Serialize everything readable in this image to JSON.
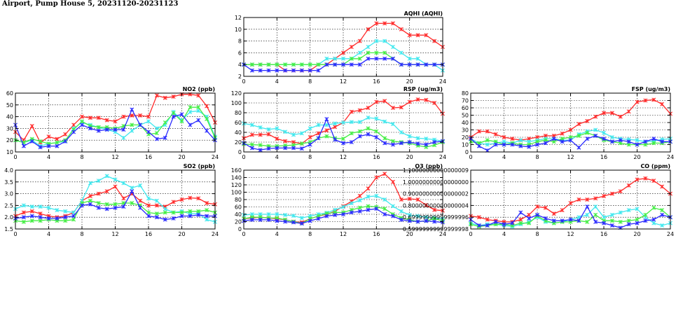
{
  "title": "Airport, Pump House 5, 20231120-20231123",
  "colors": {
    "red": "#ff2a2a",
    "cyan": "#40e8ee",
    "green": "#44ee44",
    "blue": "#2a2aff",
    "dark": "#8c2020"
  },
  "chart_data": [
    {
      "type": "line",
      "id": "aqhi",
      "title": "AQHI (AQHI)",
      "x": [
        0,
        1,
        2,
        3,
        4,
        5,
        6,
        7,
        8,
        9,
        10,
        11,
        12,
        13,
        14,
        15,
        16,
        17,
        18,
        19,
        20,
        21,
        22,
        23,
        24
      ],
      "xticks": [
        0,
        4,
        8,
        12,
        16,
        20,
        24
      ],
      "ylim": [
        2,
        12
      ],
      "yticks": [
        2,
        4,
        6,
        8,
        10,
        12
      ],
      "grid": true,
      "series": [
        {
          "color": "red",
          "values": [
            4,
            4,
            4,
            4,
            4,
            3,
            3,
            3,
            3,
            4,
            4,
            5,
            6,
            7,
            8,
            10,
            11,
            11,
            11,
            10,
            9,
            9,
            9,
            8,
            7
          ]
        },
        {
          "color": "cyan",
          "values": [
            4,
            4,
            4,
            4,
            4,
            4,
            4,
            4,
            4,
            4,
            5,
            5,
            5,
            5,
            6,
            7,
            8,
            8,
            7,
            6,
            5,
            5,
            4,
            4,
            3
          ]
        },
        {
          "color": "green",
          "values": [
            4,
            4,
            4,
            4,
            4,
            4,
            4,
            4,
            4,
            4,
            4,
            4,
            4,
            5,
            5,
            6,
            6,
            6,
            5,
            4,
            4,
            4,
            4,
            4,
            4
          ]
        },
        {
          "color": "blue",
          "values": [
            4,
            3,
            3,
            3,
            3,
            3,
            3,
            3,
            3,
            3,
            4,
            4,
            4,
            4,
            4,
            5,
            5,
            5,
            5,
            4,
            4,
            4,
            4,
            4,
            4
          ]
        }
      ]
    },
    {
      "type": "line",
      "id": "no2",
      "title": "NO2 (ppb)",
      "x": [
        0,
        1,
        2,
        3,
        4,
        5,
        6,
        7,
        8,
        9,
        10,
        11,
        12,
        13,
        14,
        15,
        16,
        17,
        18,
        19,
        20,
        21,
        22,
        23,
        24
      ],
      "xticks": [
        0,
        4,
        8,
        12,
        16,
        20,
        24
      ],
      "ylim": [
        10,
        60
      ],
      "yticks": [
        10,
        20,
        30,
        40,
        50,
        60
      ],
      "grid": true,
      "series": [
        {
          "color": "red",
          "values": [
            27,
            20,
            32,
            18,
            23,
            21,
            25,
            33,
            40,
            39,
            39,
            37,
            36,
            40,
            41,
            41,
            40,
            58,
            56,
            57,
            59,
            59,
            58,
            49,
            35
          ]
        },
        {
          "color": "cyan",
          "values": [
            20,
            18,
            20,
            15,
            17,
            18,
            19,
            30,
            35,
            33,
            31,
            29,
            27,
            22,
            28,
            33,
            36,
            30,
            33,
            44,
            37,
            44,
            45,
            40,
            23
          ]
        },
        {
          "color": "green",
          "values": [
            20,
            18,
            21,
            19,
            17,
            18,
            20,
            29,
            36,
            32,
            31,
            31,
            30,
            32,
            33,
            33,
            25,
            26,
            35,
            43,
            36,
            48,
            48,
            38,
            22
          ]
        },
        {
          "color": "blue",
          "values": [
            33,
            15,
            19,
            14,
            15,
            15,
            19,
            27,
            33,
            30,
            28,
            29,
            29,
            29,
            46,
            33,
            27,
            21,
            22,
            40,
            42,
            33,
            37,
            28,
            20
          ]
        }
      ]
    },
    {
      "type": "line",
      "id": "rsp",
      "title": "RSP (ug/m3)",
      "x": [
        0,
        1,
        2,
        3,
        4,
        5,
        6,
        7,
        8,
        9,
        10,
        11,
        12,
        13,
        14,
        15,
        16,
        17,
        18,
        19,
        20,
        21,
        22,
        23,
        24
      ],
      "xticks": [
        0,
        4,
        8,
        12,
        16,
        20,
        24
      ],
      "ylim": [
        0,
        120
      ],
      "yticks": [
        0,
        20,
        40,
        60,
        80,
        100,
        120
      ],
      "grid": true,
      "series": [
        {
          "color": "red",
          "values": [
            28,
            35,
            35,
            36,
            27,
            22,
            20,
            17,
            30,
            38,
            44,
            51,
            60,
            82,
            85,
            90,
            102,
            104,
            90,
            91,
            102,
            107,
            106,
            100,
            78
          ]
        },
        {
          "color": "cyan",
          "values": [
            58,
            55,
            50,
            46,
            48,
            41,
            35,
            38,
            48,
            55,
            55,
            58,
            60,
            61,
            61,
            70,
            68,
            62,
            57,
            40,
            32,
            28,
            27,
            25,
            22
          ]
        },
        {
          "color": "green",
          "values": [
            16,
            15,
            14,
            12,
            12,
            13,
            14,
            17,
            20,
            28,
            32,
            28,
            27,
            38,
            42,
            48,
            42,
            28,
            22,
            20,
            18,
            13,
            10,
            14,
            20
          ]
        },
        {
          "color": "blue",
          "values": [
            18,
            8,
            4,
            7,
            8,
            8,
            8,
            7,
            15,
            28,
            67,
            25,
            18,
            20,
            32,
            36,
            30,
            18,
            15,
            18,
            20,
            17,
            15,
            20,
            22
          ]
        }
      ]
    },
    {
      "type": "line",
      "id": "fsp",
      "title": "FSP (ug/m3)",
      "x": [
        0,
        1,
        2,
        3,
        4,
        5,
        6,
        7,
        8,
        9,
        10,
        11,
        12,
        13,
        14,
        15,
        16,
        17,
        18,
        19,
        20,
        21,
        22,
        23,
        24
      ],
      "xticks": [
        0,
        4,
        8,
        12,
        16,
        20,
        24
      ],
      "ylim": [
        0,
        80
      ],
      "yticks": [
        0,
        10,
        20,
        30,
        40,
        50,
        60,
        70,
        80
      ],
      "grid": true,
      "series": [
        {
          "color": "red",
          "values": [
            20,
            28,
            28,
            24,
            20,
            18,
            16,
            18,
            20,
            22,
            22,
            25,
            30,
            38,
            42,
            48,
            53,
            53,
            48,
            55,
            68,
            70,
            71,
            65,
            52
          ]
        },
        {
          "color": "cyan",
          "values": [
            18,
            12,
            10,
            12,
            14,
            12,
            16,
            14,
            16,
            18,
            18,
            16,
            16,
            24,
            28,
            30,
            26,
            20,
            18,
            17,
            16,
            14,
            15,
            17,
            18
          ]
        },
        {
          "color": "green",
          "values": [
            14,
            12,
            16,
            14,
            10,
            12,
            10,
            10,
            14,
            16,
            14,
            18,
            20,
            22,
            26,
            22,
            16,
            14,
            12,
            10,
            10,
            10,
            12,
            12,
            14
          ]
        },
        {
          "color": "blue",
          "values": [
            18,
            8,
            2,
            10,
            10,
            10,
            8,
            7,
            10,
            12,
            18,
            14,
            16,
            6,
            18,
            22,
            18,
            14,
            16,
            14,
            10,
            14,
            18,
            14,
            14
          ]
        }
      ]
    },
    {
      "type": "line",
      "id": "so2",
      "title": "SO2 (ppb)",
      "x": [
        0,
        1,
        2,
        3,
        4,
        5,
        6,
        7,
        8,
        9,
        10,
        11,
        12,
        13,
        14,
        15,
        16,
        17,
        18,
        19,
        20,
        21,
        22,
        23,
        24
      ],
      "xticks": [
        0,
        4,
        8,
        12,
        16,
        20,
        24
      ],
      "ylim": [
        1.5,
        4.0
      ],
      "yticks": [
        1.5,
        2.0,
        2.5,
        3.0,
        3.5,
        4.0
      ],
      "grid": true,
      "series": [
        {
          "color": "red",
          "values": [
            2.05,
            2.2,
            2.25,
            2.15,
            2.05,
            2.0,
            2.05,
            2.2,
            2.7,
            2.9,
            3.0,
            3.1,
            3.3,
            2.8,
            3.0,
            2.7,
            2.5,
            2.5,
            2.45,
            2.65,
            2.75,
            2.82,
            2.8,
            2.6,
            2.55
          ]
        },
        {
          "color": "cyan",
          "values": [
            2.35,
            2.5,
            2.45,
            2.45,
            2.4,
            2.3,
            2.25,
            2.2,
            2.7,
            3.45,
            3.55,
            3.75,
            3.6,
            3.45,
            3.25,
            3.35,
            2.8,
            2.7,
            2.35,
            2.2,
            2.25,
            2.15,
            2.15,
            1.9,
            1.8
          ]
        },
        {
          "color": "green",
          "values": [
            1.85,
            1.8,
            1.85,
            1.85,
            1.9,
            1.85,
            1.85,
            1.9,
            2.6,
            2.7,
            2.6,
            2.55,
            2.55,
            2.6,
            2.6,
            2.5,
            2.2,
            2.15,
            2.2,
            2.2,
            2.2,
            2.25,
            2.25,
            2.3,
            2.2
          ]
        },
        {
          "color": "blue",
          "values": [
            1.95,
            2.0,
            2.05,
            2.0,
            1.95,
            1.95,
            2.0,
            2.05,
            2.5,
            2.55,
            2.4,
            2.35,
            2.4,
            2.45,
            3.1,
            2.4,
            2.05,
            2.0,
            1.9,
            1.95,
            2.05,
            2.05,
            2.1,
            2.05,
            2.05
          ]
        }
      ]
    },
    {
      "type": "line",
      "id": "o3",
      "title": "O3 (ppb)",
      "x": [
        0,
        1,
        2,
        3,
        4,
        5,
        6,
        7,
        8,
        9,
        10,
        11,
        12,
        13,
        14,
        15,
        16,
        17,
        18,
        19,
        20,
        21,
        22,
        23,
        24
      ],
      "xticks": [
        0,
        4,
        8,
        12,
        16,
        20,
        24
      ],
      "ylim": [
        0,
        160
      ],
      "yticks": [
        0,
        20,
        40,
        60,
        80,
        100,
        120,
        140,
        160
      ],
      "grid": true,
      "series": [
        {
          "color": "red",
          "values": [
            28,
            30,
            32,
            30,
            28,
            25,
            20,
            18,
            28,
            35,
            40,
            48,
            62,
            75,
            90,
            110,
            140,
            150,
            128,
            80,
            82,
            80,
            65,
            52,
            50
          ]
        },
        {
          "color": "cyan",
          "values": [
            38,
            40,
            40,
            40,
            40,
            38,
            36,
            30,
            35,
            40,
            44,
            52,
            60,
            70,
            78,
            88,
            90,
            80,
            62,
            48,
            38,
            35,
            32,
            30,
            28
          ]
        },
        {
          "color": "green",
          "values": [
            28,
            32,
            32,
            30,
            30,
            25,
            20,
            15,
            28,
            35,
            42,
            45,
            45,
            52,
            58,
            62,
            60,
            55,
            40,
            30,
            25,
            20,
            22,
            28,
            22
          ]
        },
        {
          "color": "blue",
          "values": [
            22,
            25,
            25,
            25,
            22,
            20,
            18,
            15,
            22,
            28,
            35,
            38,
            40,
            45,
            48,
            52,
            55,
            40,
            35,
            25,
            22,
            20,
            22,
            20,
            18
          ]
        }
      ]
    },
    {
      "type": "line",
      "id": "co",
      "title": "CO (ppm)",
      "x": [
        0,
        1,
        2,
        3,
        4,
        5,
        6,
        7,
        8,
        9,
        10,
        11,
        12,
        13,
        14,
        15,
        16,
        17,
        18,
        19,
        20,
        21,
        22,
        23,
        24
      ],
      "xticks": [
        0,
        4,
        8,
        12,
        16,
        20,
        24
      ],
      "ylim": [
        0.6,
        1.1
      ],
      "yticks": [
        0.6,
        0.7,
        0.8,
        0.9,
        1.0,
        1.1
      ],
      "grid": true,
      "series": [
        {
          "color": "red",
          "values": [
            0.71,
            0.7,
            0.68,
            0.67,
            0.66,
            0.66,
            0.68,
            0.72,
            0.79,
            0.78,
            0.73,
            0.76,
            0.82,
            0.85,
            0.85,
            0.86,
            0.88,
            0.9,
            0.92,
            0.97,
            1.02,
            1.03,
            1.01,
            0.96,
            0.9
          ]
        },
        {
          "color": "cyan",
          "values": [
            0.65,
            0.63,
            0.64,
            0.64,
            0.63,
            0.62,
            0.64,
            0.66,
            0.7,
            0.66,
            0.65,
            0.66,
            0.68,
            0.7,
            0.72,
            0.79,
            0.7,
            0.72,
            0.74,
            0.76,
            0.77,
            0.7,
            0.65,
            0.63,
            0.65
          ]
        },
        {
          "color": "green",
          "values": [
            0.64,
            0.62,
            0.63,
            0.64,
            0.64,
            0.63,
            0.65,
            0.65,
            0.71,
            0.67,
            0.65,
            0.66,
            0.66,
            0.67,
            0.66,
            0.72,
            0.67,
            0.67,
            0.66,
            0.67,
            0.68,
            0.72,
            0.78,
            0.76,
            0.7
          ]
        },
        {
          "color": "blue",
          "values": [
            0.68,
            0.63,
            0.63,
            0.66,
            0.64,
            0.65,
            0.74,
            0.69,
            0.72,
            0.69,
            0.67,
            0.67,
            0.68,
            0.67,
            0.79,
            0.66,
            0.65,
            0.63,
            0.61,
            0.64,
            0.65,
            0.67,
            0.68,
            0.72,
            0.7
          ]
        }
      ]
    }
  ]
}
